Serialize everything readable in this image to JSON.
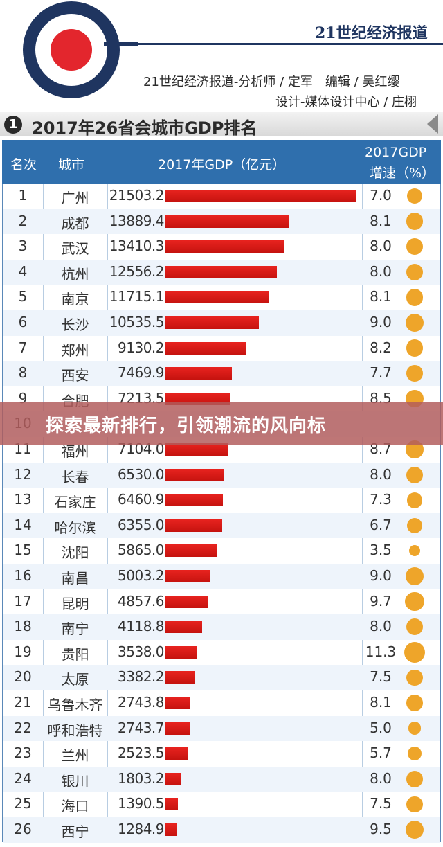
{
  "header": {
    "paper_name": "21世纪经济报道",
    "credit_line1": "21世纪经济报道-分析师 / 定军　编辑 / 吴红缨",
    "credit_line2": "设计-媒体设计中心 / 庄栩"
  },
  "title": {
    "number": "1",
    "text": "2017年26省会城市GDP排名"
  },
  "table_header": {
    "rank": "名次",
    "city": "城市",
    "gdp": "2017年GDP（亿元）",
    "growth_line1": "2017GDP",
    "growth_line2": "增速（%）"
  },
  "banner": {
    "text": "探索最新排行，引领潮流的风向标"
  },
  "colors": {
    "header_blue": "#2f6fad",
    "bar_red": "#d81b17",
    "dot_orange": "#eea52a",
    "banner_overlay": "#b25c5c"
  },
  "chart_data": {
    "type": "bar",
    "title": "2017年26省会城市GDP排名",
    "categories": [
      "广州",
      "成都",
      "武汉",
      "杭州",
      "南京",
      "长沙",
      "郑州",
      "西安",
      "合肥",
      "",
      "福州",
      "长春",
      "石家庄",
      "哈尔滨",
      "沈阳",
      "南昌",
      "昆明",
      "南宁",
      "贵阳",
      "太原",
      "乌鲁木齐",
      "呼和浩特",
      "兰州",
      "银川",
      "海口",
      "西宁"
    ],
    "ranks": [
      "1",
      "2",
      "3",
      "4",
      "5",
      "6",
      "7",
      "8",
      "9",
      "10",
      "11",
      "12",
      "13",
      "14",
      "15",
      "16",
      "17",
      "18",
      "19",
      "20",
      "21",
      "22",
      "23",
      "24",
      "25",
      "26"
    ],
    "series": [
      {
        "name": "2017年GDP（亿元）",
        "values": [
          21503.2,
          13889.4,
          13410.3,
          12556.2,
          11715.1,
          10535.5,
          9130.2,
          7469.9,
          7213.5,
          null,
          7104.0,
          6530.0,
          6460.9,
          6355.0,
          5865.0,
          5003.2,
          4857.6,
          4118.8,
          3538.0,
          3382.2,
          2743.8,
          2743.7,
          2523.5,
          1803.2,
          1390.5,
          1284.9
        ]
      },
      {
        "name": "2017GDP增速（%）",
        "values": [
          7.0,
          8.1,
          8.0,
          8.0,
          8.1,
          9.0,
          8.2,
          7.7,
          8.5,
          null,
          8.7,
          8.0,
          7.3,
          6.7,
          3.5,
          9.0,
          9.7,
          8.0,
          11.3,
          7.5,
          8.1,
          5.0,
          5.7,
          8.0,
          7.5,
          9.5
        ]
      }
    ],
    "gdp_labels": [
      "21503.2",
      "13889.4",
      "13410.3",
      "12556.2",
      "11715.1",
      "10535.5",
      "9130.2",
      "7469.9",
      "7213.5",
      "",
      "7104.0",
      "6530.0",
      "6460.9",
      "6355.0",
      "5865.0",
      "5003.2",
      "4857.6",
      "4118.8",
      "3538.0",
      "3382.2",
      "2743.8",
      "2743.7",
      "2523.5",
      "1803.2",
      "1390.5",
      "1284.9"
    ],
    "growth_labels": [
      "7.0",
      "8.1",
      "8.0",
      "8.0",
      "8.1",
      "9.0",
      "8.2",
      "7.7",
      "8.5",
      "",
      "8.7",
      "8.0",
      "7.3",
      "6.7",
      "3.5",
      "9.0",
      "9.7",
      "8.0",
      "11.3",
      "7.5",
      "8.1",
      "5.0",
      "5.7",
      "8.0",
      "7.5",
      "9.5"
    ],
    "xlim": [
      0,
      21503.2
    ],
    "legend": "none",
    "grid": false
  }
}
